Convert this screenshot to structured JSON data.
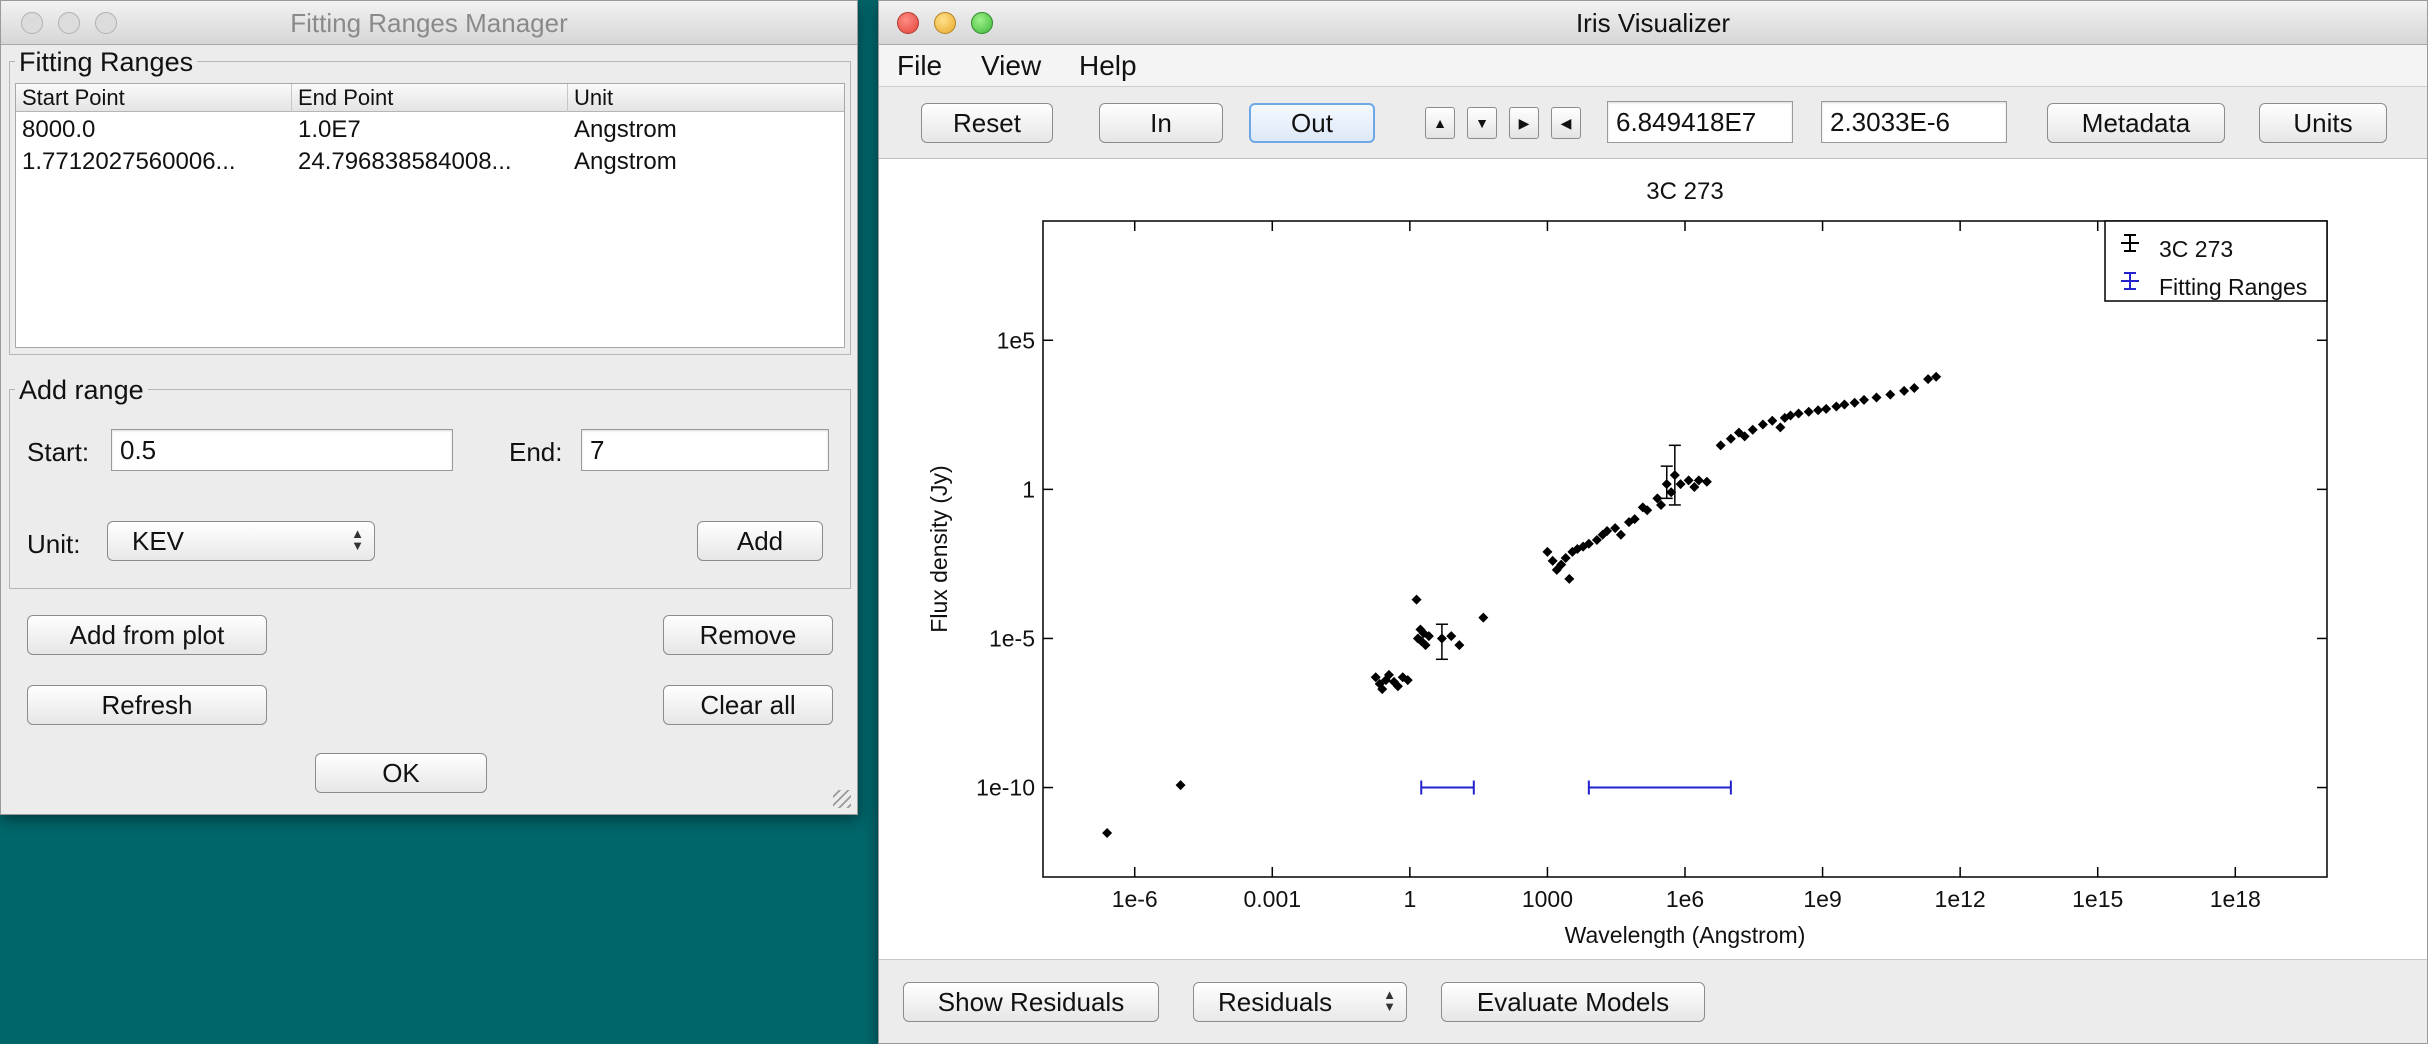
{
  "fitting_manager": {
    "title": "Fitting Ranges Manager",
    "group_title": "Fitting Ranges",
    "columns": [
      "Start Point",
      "End Point",
      "Unit"
    ],
    "rows": [
      {
        "start": "8000.0",
        "end": "1.0E7",
        "unit": "Angstrom"
      },
      {
        "start": "1.7712027560006...",
        "end": "24.796838584008...",
        "unit": "Angstrom"
      }
    ],
    "add_range": {
      "title": "Add range",
      "start_label": "Start:",
      "start_value": "0.5",
      "end_label": "End:",
      "end_value": "7",
      "unit_label": "Unit:",
      "unit_value": "KEV",
      "add_button": "Add"
    },
    "buttons": {
      "add_from_plot": "Add from plot",
      "remove": "Remove",
      "refresh": "Refresh",
      "clear_all": "Clear all",
      "ok": "OK"
    }
  },
  "visualizer": {
    "title": "Iris Visualizer",
    "menu": [
      "File",
      "View",
      "Help"
    ],
    "toolbar": {
      "reset": "Reset",
      "zoom_in": "In",
      "zoom_out": "Out",
      "coord_x": "6.849418E7",
      "coord_y": "2.3033E-6",
      "metadata": "Metadata",
      "units": "Units"
    },
    "bottom": {
      "show_residuals": "Show Residuals",
      "residuals_select": "Residuals",
      "evaluate_models": "Evaluate Models"
    }
  },
  "chart_data": {
    "type": "scatter",
    "title": "3C 273",
    "xlabel": "Wavelength (Angstrom)",
    "ylabel": "Flux density (Jy)",
    "x_scale": "log",
    "y_scale": "log",
    "xlim": [
      1e-08,
      1e+20
    ],
    "ylim": [
      1e-13,
      1000000000.0
    ],
    "x_ticks": [
      {
        "v": 1e-06,
        "label": "1e-6"
      },
      {
        "v": 0.001,
        "label": "0.001"
      },
      {
        "v": 1,
        "label": "1"
      },
      {
        "v": 1000.0,
        "label": "1000"
      },
      {
        "v": 1000000.0,
        "label": "1e6"
      },
      {
        "v": 1000000000.0,
        "label": "1e9"
      },
      {
        "v": 1000000000000.0,
        "label": "1e12"
      },
      {
        "v": 1000000000000000.0,
        "label": "1e15"
      },
      {
        "v": 1e+18,
        "label": "1e18"
      }
    ],
    "y_ticks": [
      {
        "v": 1e-10,
        "label": "1e-10"
      },
      {
        "v": 1e-05,
        "label": "1e-5"
      },
      {
        "v": 1,
        "label": "1"
      },
      {
        "v": 100000.0,
        "label": "1e5"
      }
    ],
    "legend": {
      "position": "top-right",
      "entries": [
        "3C 273",
        "Fitting Ranges"
      ]
    },
    "series": [
      {
        "name": "3C 273",
        "color": "#000000",
        "points": [
          [
            2.5e-07,
            3e-12
          ],
          [
            1e-05,
            1.2e-10
          ],
          [
            0.18,
            5e-07
          ],
          [
            0.22,
            3e-07
          ],
          [
            0.25,
            2e-07
          ],
          [
            0.3,
            4e-07
          ],
          [
            0.35,
            6e-07
          ],
          [
            0.45,
            3.5e-07
          ],
          [
            0.55,
            2.5e-07
          ],
          [
            0.7,
            5e-07
          ],
          [
            0.9,
            4e-07
          ],
          [
            1.4,
            0.0002
          ],
          [
            1.5,
            1e-05
          ],
          [
            1.7,
            2e-05
          ],
          [
            1.8,
            8e-06
          ],
          [
            2,
            1.5e-05
          ],
          [
            2.2,
            6e-06
          ],
          [
            2.6,
            1.2e-05
          ],
          [
            5,
            1e-05
          ],
          [
            8,
            1.2e-05
          ],
          [
            12,
            6e-06
          ],
          [
            40,
            5e-05
          ],
          [
            1000,
            0.008
          ],
          [
            1300,
            0.004
          ],
          [
            1600,
            0.002
          ],
          [
            2000,
            0.003
          ],
          [
            2500,
            0.005
          ],
          [
            3000,
            0.001
          ],
          [
            3500,
            0.008
          ],
          [
            4500,
            0.01
          ],
          [
            6000,
            0.012
          ],
          [
            8000,
            0.015
          ],
          [
            12000.0,
            0.02
          ],
          [
            16000.0,
            0.03
          ],
          [
            20000.0,
            0.04
          ],
          [
            30000.0,
            0.05
          ],
          [
            40000.0,
            0.03
          ],
          [
            60000.0,
            0.08
          ],
          [
            80000.0,
            0.1
          ],
          [
            120000.0,
            0.25
          ],
          [
            150000.0,
            0.2
          ],
          [
            250000.0,
            0.5
          ],
          [
            300000.0,
            0.3
          ],
          [
            400000.0,
            1.5
          ],
          [
            500000.0,
            0.8
          ],
          [
            600000.0,
            3
          ],
          [
            800000.0,
            1.5
          ],
          [
            1200000.0,
            2
          ],
          [
            1600000.0,
            1.2
          ],
          [
            2000000.0,
            2
          ],
          [
            3000000.0,
            1.8
          ],
          [
            6000000.0,
            30
          ],
          [
            10000000.0,
            50
          ],
          [
            15000000.0,
            80
          ],
          [
            20000000.0,
            60
          ],
          [
            30000000.0,
            100
          ],
          [
            50000000.0,
            150
          ],
          [
            80000000.0,
            200
          ],
          [
            120000000.0,
            120
          ],
          [
            150000000.0,
            250
          ],
          [
            200000000.0,
            300
          ],
          [
            300000000.0,
            350
          ],
          [
            500000000.0,
            400
          ],
          [
            800000000.0,
            450
          ],
          [
            1200000000.0,
            500
          ],
          [
            2000000000.0,
            600
          ],
          [
            3000000000.0,
            700
          ],
          [
            5000000000.0,
            800
          ],
          [
            8000000000.0,
            1000
          ],
          [
            15000000000.0,
            1200
          ],
          [
            30000000000.0,
            1500
          ],
          [
            60000000000.0,
            2000
          ],
          [
            100000000000.0,
            2500
          ],
          [
            200000000000.0,
            5000
          ],
          [
            300000000000.0,
            6000
          ]
        ]
      },
      {
        "name": "Fitting Ranges",
        "color": "#2222cc",
        "ranges": [
          {
            "start": 1.7712027560006,
            "end": 24.796838584008
          },
          {
            "start": 8000.0,
            "end": 10000000.0
          }
        ],
        "y": 1e-10
      }
    ]
  }
}
